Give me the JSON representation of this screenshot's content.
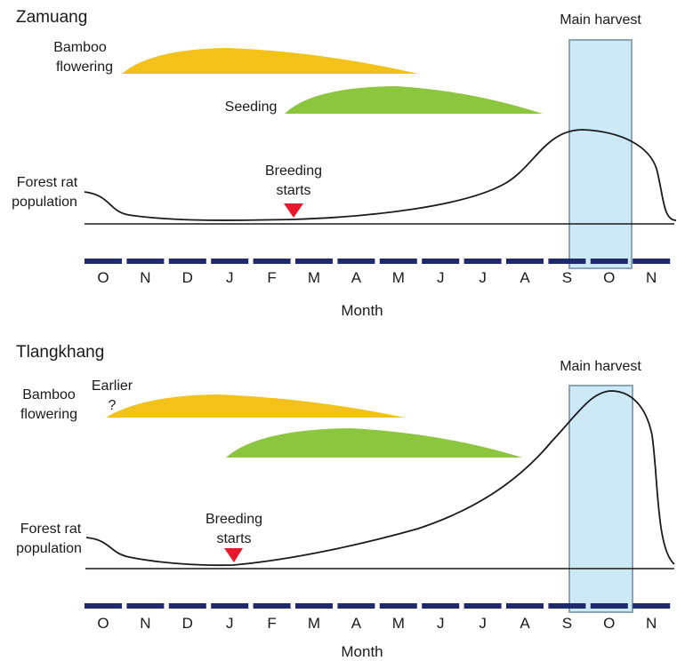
{
  "months": [
    "O",
    "N",
    "D",
    "J",
    "F",
    "M",
    "A",
    "M",
    "J",
    "J",
    "A",
    "S",
    "O",
    "N"
  ],
  "colors": {
    "bamboo_flowering": "#f2c219",
    "seeding": "#8cc63f",
    "harvest_fill": "#cde8f6",
    "harvest_border": "#8aa5b5",
    "breeding_marker": "#e8192c",
    "month_bar": "#1f2a6e",
    "curve": "#1a1a1a"
  },
  "panels": [
    {
      "site": "Zamuang",
      "harvest_label": "Main harvest",
      "bamboo_label_line1": "Bamboo",
      "bamboo_label_line2": "flowering",
      "earlier_label_line1": "",
      "earlier_label_line2": "",
      "seeding_label": "Seeding",
      "breeding_label_line1": "Breeding",
      "breeding_label_line2": "starts",
      "population_label_line1": "Forest rat",
      "population_label_line2": "population",
      "x_axis_title": "Month"
    },
    {
      "site": "Tlangkhang",
      "harvest_label": "Main harvest",
      "bamboo_label_line1": "Bamboo",
      "bamboo_label_line2": "flowering",
      "earlier_label_line1": "Earlier",
      "earlier_label_line2": "?",
      "seeding_label": "",
      "breeding_label_line1": "Breeding",
      "breeding_label_line2": "starts",
      "population_label_line1": "Forest rat",
      "population_label_line2": "population",
      "x_axis_title": "Month"
    }
  ]
}
